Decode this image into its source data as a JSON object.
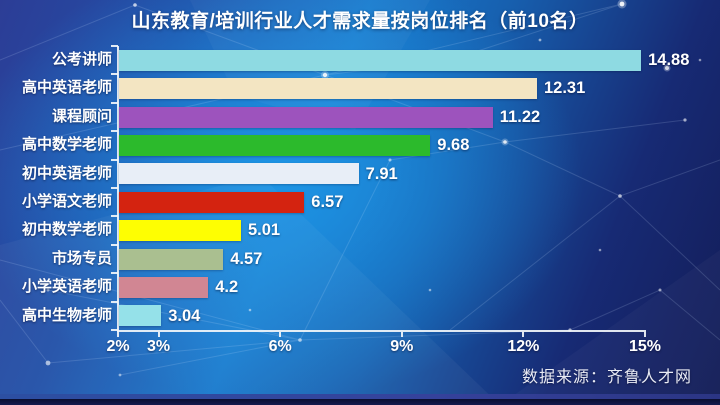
{
  "source_caption": "数据来源：齐鲁人才网",
  "colors": {
    "background_corner": "#2c3d96",
    "background_center": "#1e96e6",
    "background_dark": "#131c56",
    "axis": "#f2f6fa",
    "text": "#ffffff",
    "bottom_strip": "#2c4fa2"
  },
  "chart_data": {
    "type": "bar",
    "orientation": "horizontal",
    "title": "山东教育/培训行业人才需求量按岗位排名（前10名）",
    "unit": "percent",
    "grid": "off",
    "legend": "none",
    "categories": [
      "公考讲师",
      "高中英语老师",
      "课程顾问",
      "高中数学老师",
      "初中英语老师",
      "小学语文老师",
      "初中数学老师",
      "市场专员",
      "小学英语老师",
      "高中生物老师"
    ],
    "values": [
      14.88,
      12.31,
      11.22,
      9.68,
      7.91,
      6.57,
      5.01,
      4.57,
      4.2,
      3.04
    ],
    "bar_colors": [
      "#8edae2",
      "#f3e5c2",
      "#9d53bd",
      "#2cba2c",
      "#e8eef7",
      "#d42310",
      "#fefe02",
      "#aabf90",
      "#d18693",
      "#95e1e9"
    ],
    "x_axis": {
      "min": 2,
      "max": 15,
      "tick_labels": [
        "2%",
        "3%",
        "6%",
        "9%",
        "12%",
        "15%"
      ],
      "tick_values": [
        2,
        3,
        6,
        9,
        12,
        15
      ]
    }
  }
}
